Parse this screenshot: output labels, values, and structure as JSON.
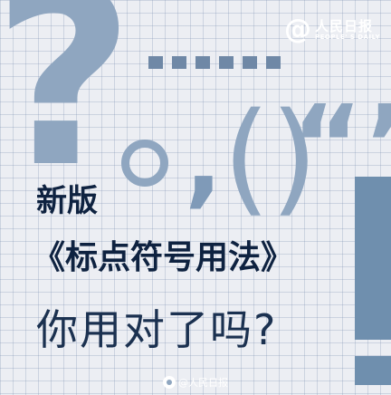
{
  "brand": {
    "at_symbol": "@",
    "name_cn": "人民日报",
    "name_en": "PEOPLE' S DAILY"
  },
  "decor": {
    "question_mark": "?",
    "comma": ",",
    "parens": "()",
    "quotes": "“”"
  },
  "headline": {
    "line1": "新版",
    "line2": "《标点符号用法》",
    "line3": "你用对了吗?"
  },
  "watermark": {
    "text": "@人民日报"
  },
  "colors": {
    "background": "#eceef3",
    "punctuation": "#8fa6c0",
    "title": "#0e2240"
  }
}
